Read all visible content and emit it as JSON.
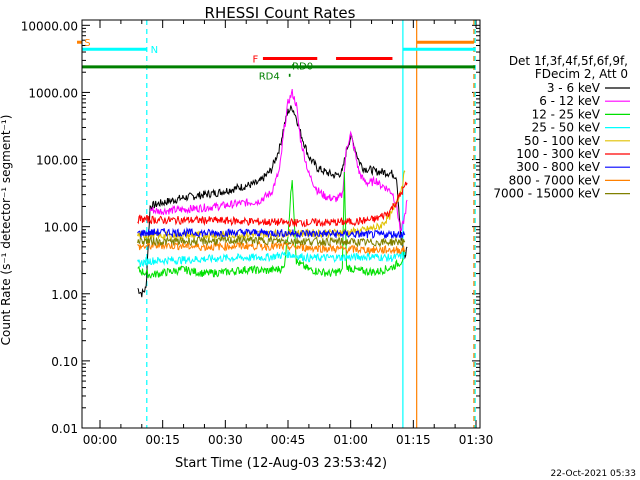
{
  "chart_data": {
    "type": "line",
    "title": "RHESSI Count Rates",
    "xlabel": "Start Time (12-Aug-03 23:53:42)",
    "ylabel": "Count Rate (s⁻¹ detector⁻¹ segment⁻¹)",
    "yscale": "log",
    "xlim_minutes": [
      -6.2,
      37.5
    ],
    "ylim": [
      0.01,
      12000
    ],
    "x_ticks": [
      {
        "t": 0,
        "label": "00:00"
      },
      {
        "t": 15,
        "label": "00:15"
      },
      {
        "t": 30,
        "label": "00:30"
      },
      {
        "t": 45,
        "label": "00:45"
      },
      {
        "t": 60,
        "label": "01:00"
      },
      {
        "t": 75,
        "label": "01:15"
      },
      {
        "t": 90,
        "label": "01:30"
      }
    ],
    "y_ticks": [
      {
        "v": 10000,
        "label": "10000.00"
      },
      {
        "v": 1000,
        "label": "1000.00"
      },
      {
        "v": 100,
        "label": "100.00"
      },
      {
        "v": 10,
        "label": "10.00"
      },
      {
        "v": 1,
        "label": "1.00"
      },
      {
        "v": 0.1,
        "label": "0.10"
      },
      {
        "v": 0.01,
        "label": "0.01"
      }
    ],
    "legend_header": [
      "Det 1f,3f,4f,5f,6f,9f,",
      "FDecim 2, Att 0"
    ],
    "legend_position": "right",
    "series": [
      {
        "name": "3 - 6 keV",
        "color": "#000000",
        "x": [
          9,
          10,
          11,
          12,
          14,
          20,
          28,
          33,
          38,
          41,
          43,
          44,
          45,
          46,
          47,
          48,
          50,
          52,
          54,
          56,
          57,
          58,
          59,
          60,
          61,
          62,
          63,
          64,
          65,
          66,
          67,
          68,
          70,
          71,
          72,
          73,
          73.5
        ],
        "y": [
          1.2,
          1.0,
          1.2,
          20,
          22,
          27,
          32,
          38,
          45,
          70,
          150,
          300,
          520,
          600,
          420,
          250,
          110,
          75,
          65,
          58,
          60,
          65,
          140,
          220,
          150,
          95,
          75,
          72,
          70,
          66,
          66,
          65,
          62,
          55,
          7,
          3.5,
          5
        ]
      },
      {
        "name": "6 - 12 keV",
        "color": "#ff00ff",
        "x": [
          12,
          14,
          20,
          28,
          33,
          38,
          41,
          43,
          44,
          45,
          46,
          47,
          48,
          50,
          52,
          54,
          56,
          57,
          58,
          59,
          60,
          61,
          62,
          63,
          64,
          65,
          66,
          67,
          68,
          70,
          71,
          72,
          73,
          73.5
        ],
        "y": [
          18,
          17,
          18,
          20,
          22,
          24,
          32,
          70,
          250,
          700,
          1000,
          650,
          200,
          60,
          35,
          28,
          26,
          26,
          30,
          150,
          240,
          130,
          65,
          50,
          45,
          45,
          50,
          42,
          40,
          32,
          20,
          8,
          15,
          25
        ]
      },
      {
        "name": "12 - 25 keV",
        "color": "#00e000",
        "x": [
          9,
          12,
          16,
          20,
          25,
          30,
          35,
          40,
          44,
          45,
          46,
          47,
          50,
          55,
          58,
          58.5,
          59,
          62,
          66,
          70,
          72,
          73
        ],
        "y": [
          2.3,
          1.9,
          2.1,
          2.3,
          2.0,
          2.1,
          2.3,
          2.2,
          2.4,
          8,
          55,
          3,
          2.3,
          2.0,
          2.2,
          60,
          2.5,
          2.2,
          2.1,
          2.5,
          3.0,
          4.0
        ]
      },
      {
        "name": "25 - 50 keV",
        "color": "#00ffff",
        "x": [
          9,
          12,
          20,
          30,
          40,
          45,
          50,
          60,
          65,
          70,
          73
        ],
        "y": [
          2.8,
          3.1,
          3.2,
          3.4,
          3.5,
          3.9,
          3.4,
          3.5,
          3.6,
          3.4,
          3.8
        ]
      },
      {
        "name": "50 - 100 keV",
        "color": "#e0c000",
        "x": [
          9,
          15,
          25,
          35,
          45,
          55,
          62,
          67,
          70,
          72,
          73
        ],
        "y": [
          7.5,
          7.3,
          7.5,
          7.6,
          8.0,
          8.0,
          8.5,
          10,
          16,
          35,
          65
        ]
      },
      {
        "name": "100 - 300 keV",
        "color": "#ff0000",
        "x": [
          9,
          15,
          25,
          35,
          45,
          55,
          62,
          66,
          69,
          71,
          72.5,
          73.5
        ],
        "y": [
          13,
          12.5,
          12.5,
          12.0,
          11.5,
          11.5,
          12.0,
          13,
          16,
          24,
          35,
          45
        ]
      },
      {
        "name": "300 - 800 keV",
        "color": "#0000ff",
        "x": [
          9,
          15,
          25,
          35,
          45,
          55,
          65,
          73
        ],
        "y": [
          8.0,
          8.3,
          8.0,
          8.2,
          8.0,
          7.8,
          7.6,
          7.8
        ]
      },
      {
        "name": "800 - 7000 keV",
        "color": "#ff8000",
        "x": [
          9,
          15,
          25,
          35,
          45,
          55,
          65,
          73
        ],
        "y": [
          5.0,
          5.3,
          5.0,
          5.2,
          5.0,
          4.7,
          4.5,
          4.5
        ]
      },
      {
        "name": "7000 - 15000 keV",
        "color": "#808000",
        "x": [
          9,
          15,
          25,
          35,
          45,
          55,
          65,
          73
        ],
        "y": [
          6.2,
          6.0,
          6.1,
          6.3,
          6.1,
          6.0,
          5.8,
          6.0
        ]
      }
    ],
    "vertical_markers": [
      {
        "t": -5.5,
        "color": "#ff8000",
        "style": "dashed"
      },
      {
        "t": 11.2,
        "color": "#00ffff",
        "style": "dashed"
      },
      {
        "t": 72.5,
        "color": "#00ffff",
        "style": "solid"
      },
      {
        "t": 75.8,
        "color": "#ff8000",
        "style": "solid"
      },
      {
        "t": 89.5,
        "color": "#ff8000",
        "style": "dashed"
      },
      {
        "t": 89.8,
        "color": "#00ffff",
        "style": "dashed"
      },
      {
        "t": -7.6,
        "color": "#00ffff",
        "style": "solid"
      }
    ],
    "flag_bars": [
      {
        "label": "S",
        "color": "#ff8000",
        "t_start": -7.8,
        "t_end": -5.5,
        "y": 5600,
        "label_at": -3.0
      },
      {
        "label": "N",
        "color": "#00ffff",
        "t_start": -7.8,
        "t_end": 11.2,
        "y": 4400,
        "label_at": 13.0
      },
      {
        "label": "",
        "color": "#ff8000",
        "t_start": 75.8,
        "t_end": 89.5,
        "y": 5600,
        "label_at": null
      },
      {
        "label": "",
        "color": "#00ffff",
        "t_start": 72.5,
        "t_end": 89.8,
        "y": 4400,
        "label_at": null
      },
      {
        "label": "",
        "color": "#008000",
        "t_start": -7.8,
        "t_end": 89.8,
        "y": 2400,
        "label_at": null
      },
      {
        "label": "F",
        "color": "#ff0000",
        "t_start": 39.0,
        "t_end": 52.0,
        "y": 3200,
        "label_at": 37.2
      },
      {
        "label": "",
        "color": "#ff0000",
        "t_start": 56.5,
        "t_end": 70.0,
        "y": 3200,
        "label_at": null
      },
      {
        "label": "RD0",
        "color": "#008000",
        "t_start": 46.0,
        "t_end": 46.3,
        "y": 2500,
        "label_at": 48.5
      },
      {
        "label": "RD4",
        "color": "#008000",
        "t_start": 45.2,
        "t_end": 45.6,
        "y": 1800,
        "label_at": 40.5
      }
    ],
    "timestamp": "22-Oct-2021 05:33"
  }
}
